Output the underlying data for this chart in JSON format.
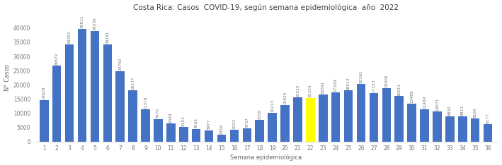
{
  "title": "Costa Rica: Casos  COVID-19, según semana epidemiológica  año  2022",
  "xlabel": "Semana epidemiológica",
  "ylabel": "N° Casos",
  "weeks": [
    1,
    2,
    3,
    4,
    5,
    6,
    7,
    8,
    9,
    10,
    11,
    12,
    13,
    14,
    15,
    16,
    17,
    18,
    19,
    20,
    21,
    22,
    23,
    24,
    25,
    26,
    27,
    28,
    29,
    30,
    31,
    32,
    33,
    34,
    35,
    36
  ],
  "values": [
    14628,
    26672,
    34297,
    39811,
    39036,
    34191,
    24762,
    18137,
    11318,
    7970,
    6384,
    5153,
    4563,
    3977,
    2359,
    4233,
    4737,
    7558,
    10213,
    12925,
    15525,
    15334,
    16561,
    17329,
    18013,
    20361,
    17223,
    18906,
    16011,
    13489,
    11469,
    10671,
    8892,
    8913,
    8165,
    6177
  ],
  "bar_colors": [
    "#4472C4",
    "#4472C4",
    "#4472C4",
    "#4472C4",
    "#4472C4",
    "#4472C4",
    "#4472C4",
    "#4472C4",
    "#4472C4",
    "#4472C4",
    "#4472C4",
    "#4472C4",
    "#4472C4",
    "#4472C4",
    "#4472C4",
    "#4472C4",
    "#4472C4",
    "#4472C4",
    "#4472C4",
    "#4472C4",
    "#4472C4",
    "#FFFF00",
    "#4472C4",
    "#4472C4",
    "#4472C4",
    "#4472C4",
    "#4472C4",
    "#4472C4",
    "#4472C4",
    "#4472C4",
    "#4472C4",
    "#4472C4",
    "#4472C4",
    "#4472C4",
    "#4472C4",
    "#4472C4"
  ],
  "ylim": [
    0,
    45000
  ],
  "yticks": [
    0,
    5000,
    10000,
    15000,
    20000,
    25000,
    30000,
    35000,
    40000
  ],
  "background_color": "#ffffff",
  "label_fontsize": 4.2,
  "axis_fontsize": 6.0,
  "title_fontsize": 7.5,
  "tick_fontsize": 5.5,
  "bar_width": 0.7
}
